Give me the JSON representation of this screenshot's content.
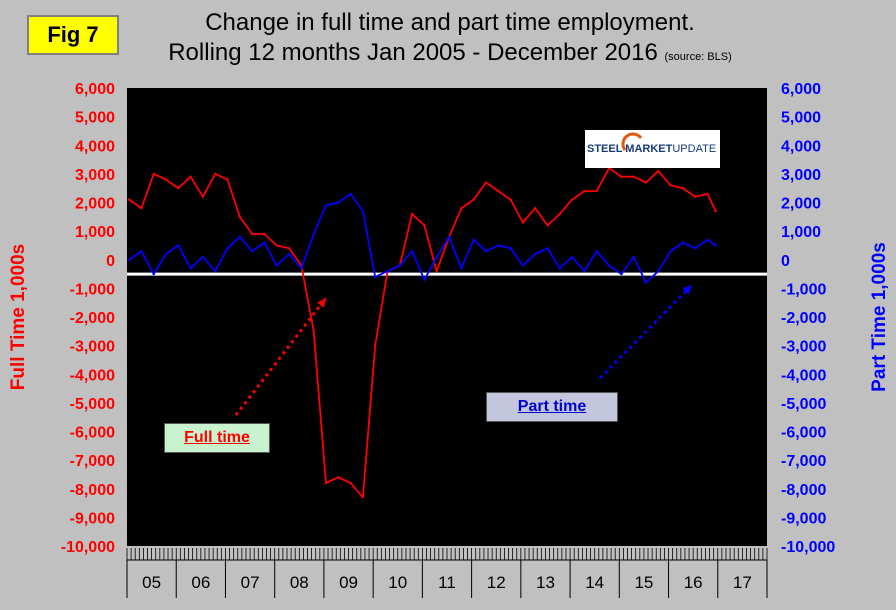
{
  "figure_label": "Fig 7",
  "title_line1": "Change in full time and part time employment.",
  "title_line2": "Rolling 12 months Jan 2005 - December 2016",
  "source_note": "(source: BLS)",
  "logo": {
    "bold": "STEEL MARKET",
    "regular": " UPDATE"
  },
  "chart_data": {
    "type": "line",
    "title": "Change in full time and part time employment. Rolling 12 months Jan 2005 - December 2016",
    "xlabel": "",
    "ylabel_left": "Full Time 1,000s",
    "ylabel_right": "Part Time 1,000s",
    "ylim": [
      -10000,
      6000
    ],
    "yticks": [
      6000,
      5000,
      4000,
      3000,
      2000,
      1000,
      0,
      -1000,
      -2000,
      -3000,
      -4000,
      -5000,
      -6000,
      -7000,
      -8000,
      -9000,
      -10000
    ],
    "ytick_labels": [
      "6,000",
      "5,000",
      "4,000",
      "3,000",
      "2,000",
      "1,000",
      "0",
      "-1,000",
      "-2,000",
      "-3,000",
      "-4,000",
      "-5,000",
      "-6,000",
      "-7,000",
      "-8,000",
      "-9,000",
      "-10,000"
    ],
    "x_categories": [
      "05",
      "06",
      "07",
      "08",
      "09",
      "10",
      "11",
      "12",
      "13",
      "14",
      "15",
      "16",
      "17"
    ],
    "x_range": [
      "2005-01",
      "2017-12"
    ],
    "reference_line": -500,
    "series": [
      {
        "name": "Full time",
        "color": "#ff0000",
        "x": [
          "2005-01",
          "2005-04",
          "2005-07",
          "2005-10",
          "2006-01",
          "2006-04",
          "2006-07",
          "2006-10",
          "2007-01",
          "2007-04",
          "2007-07",
          "2007-10",
          "2008-01",
          "2008-04",
          "2008-07",
          "2008-10",
          "2009-01",
          "2009-04",
          "2009-07",
          "2009-10",
          "2010-01",
          "2010-04",
          "2010-07",
          "2010-10",
          "2011-01",
          "2011-04",
          "2011-07",
          "2011-10",
          "2012-01",
          "2012-04",
          "2012-07",
          "2012-10",
          "2013-01",
          "2013-04",
          "2013-07",
          "2013-10",
          "2014-01",
          "2014-04",
          "2014-07",
          "2014-10",
          "2015-01",
          "2015-04",
          "2015-07",
          "2015-10",
          "2016-01",
          "2016-04",
          "2016-07",
          "2016-10",
          "2016-12"
        ],
        "values": [
          2100,
          1800,
          3000,
          2800,
          2500,
          2900,
          2200,
          3000,
          2800,
          1500,
          900,
          900,
          500,
          400,
          -200,
          -2500,
          -7800,
          -7600,
          -7800,
          -8300,
          -3000,
          -400,
          -200,
          1600,
          1200,
          -400,
          800,
          1800,
          2100,
          2700,
          2400,
          2100,
          1300,
          1800,
          1200,
          1600,
          2100,
          2400,
          2400,
          3200,
          2900,
          2900,
          2700,
          3100,
          2600,
          2500,
          2200,
          2300,
          1700
        ]
      },
      {
        "name": "Part time",
        "color": "#0000ff",
        "x": [
          "2005-01",
          "2005-04",
          "2005-07",
          "2005-10",
          "2006-01",
          "2006-04",
          "2006-07",
          "2006-10",
          "2007-01",
          "2007-04",
          "2007-07",
          "2007-10",
          "2008-01",
          "2008-04",
          "2008-07",
          "2008-10",
          "2009-01",
          "2009-04",
          "2009-07",
          "2009-10",
          "2010-01",
          "2010-04",
          "2010-07",
          "2010-10",
          "2011-01",
          "2011-04",
          "2011-07",
          "2011-10",
          "2012-01",
          "2012-04",
          "2012-07",
          "2012-10",
          "2013-01",
          "2013-04",
          "2013-07",
          "2013-10",
          "2014-01",
          "2014-04",
          "2014-07",
          "2014-10",
          "2015-01",
          "2015-04",
          "2015-07",
          "2015-10",
          "2016-01",
          "2016-04",
          "2016-07",
          "2016-10",
          "2016-12"
        ],
        "values": [
          0,
          300,
          -500,
          200,
          500,
          -300,
          100,
          -400,
          400,
          800,
          300,
          600,
          -200,
          200,
          -300,
          900,
          1900,
          2000,
          2300,
          1700,
          -600,
          -400,
          -200,
          300,
          -700,
          100,
          800,
          -300,
          700,
          300,
          500,
          400,
          -200,
          200,
          400,
          -300,
          100,
          -400,
          300,
          -200,
          -500,
          100,
          -800,
          -400,
          300,
          600,
          400,
          700,
          500
        ]
      }
    ]
  }
}
